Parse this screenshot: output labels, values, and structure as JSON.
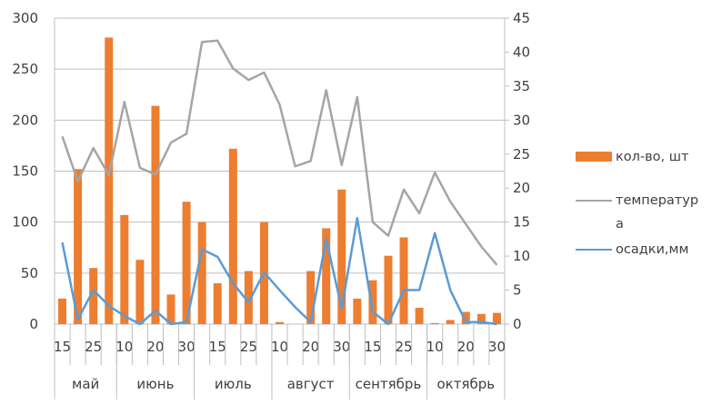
{
  "chart_data": {
    "type": "bar+line",
    "categories": [
      "15",
      "",
      "25",
      "",
      "10",
      "",
      "20",
      "",
      "30",
      "",
      "15",
      "",
      "25",
      "",
      "10",
      "",
      "20",
      "",
      "30",
      "",
      "15",
      "",
      "25",
      "",
      "10",
      "",
      "20",
      "",
      "30"
    ],
    "months": [
      {
        "label": "май",
        "count": 4
      },
      {
        "label": "июнь",
        "count": 5
      },
      {
        "label": "июль",
        "count": 5
      },
      {
        "label": "август",
        "count": 5
      },
      {
        "label": "сентябрь",
        "count": 5
      },
      {
        "label": "октябрь",
        "count": 5
      }
    ],
    "y_left": {
      "lim": [
        0,
        300
      ],
      "ticks": [
        0,
        50,
        100,
        150,
        200,
        250,
        300
      ]
    },
    "y_right": {
      "lim": [
        0,
        45
      ],
      "ticks": [
        0,
        5,
        10,
        15,
        20,
        25,
        30,
        35,
        40,
        45
      ]
    },
    "grid": true,
    "legend_position": "right",
    "series": [
      {
        "name": "кол-во, шт",
        "type": "bar",
        "axis": "left",
        "color": "#ED7D31",
        "values": [
          25,
          152,
          55,
          281,
          107,
          63,
          214,
          29,
          120,
          100,
          40,
          172,
          52,
          100,
          2,
          0,
          52,
          94,
          132,
          25,
          43,
          67,
          85,
          16,
          1,
          4,
          12,
          10,
          11
        ]
      },
      {
        "name": "температура",
        "type": "line",
        "axis": "right",
        "color": "#A5A5A5",
        "values": [
          27.6,
          21,
          25.9,
          21.9,
          32.7,
          23,
          22,
          26.7,
          28,
          41.5,
          41.7,
          37.6,
          35.9,
          37,
          32.3,
          23.2,
          24,
          34.4,
          23.4,
          33.4,
          15,
          13,
          19.8,
          16.3,
          22.3,
          18,
          14.7,
          11.4,
          8.7
        ]
      },
      {
        "name": "осадки,мм",
        "type": "line",
        "axis": "right",
        "color": "#5B9BD5",
        "values": [
          12,
          0.7,
          5,
          2.7,
          1.2,
          0,
          2,
          0,
          0.3,
          11,
          9.9,
          6,
          3.2,
          7.6,
          5,
          2.5,
          0.3,
          12.5,
          2.3,
          15.6,
          1.8,
          0,
          5,
          5,
          13.4,
          5,
          0.3,
          0.3,
          0
        ]
      }
    ]
  }
}
